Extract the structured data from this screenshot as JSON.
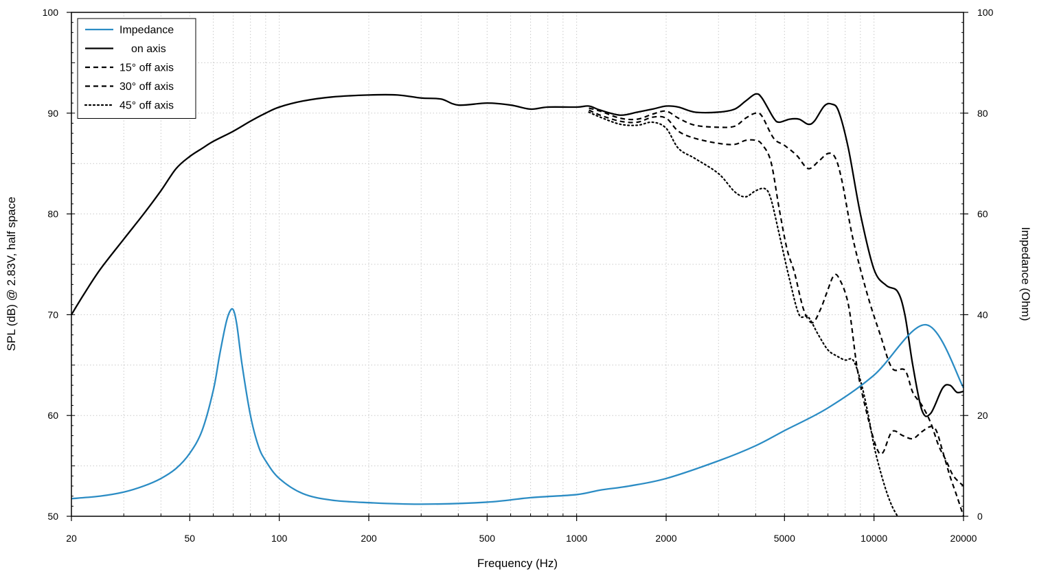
{
  "chart_data": {
    "type": "line",
    "title": "",
    "xlabel": "Frequency (Hz)",
    "ylabel": "SPL (dB) @ 2.83V, half space",
    "y2label": "Impedance (Ohm)",
    "x_scale": "log",
    "xlim": [
      20,
      20000
    ],
    "ylim": [
      50,
      100
    ],
    "y2lim": [
      0,
      100
    ],
    "grid": true,
    "legend_position": "top-left",
    "x_ticks": [
      20,
      50,
      100,
      200,
      500,
      1000,
      2000,
      5000,
      10000,
      20000
    ],
    "x_tick_labels": [
      "20",
      "50",
      "100",
      "200",
      "500",
      "1000",
      "2000",
      "5000",
      "10000",
      "20000"
    ],
    "y_ticks": [
      50,
      60,
      70,
      80,
      90,
      100
    ],
    "y_tick_labels": [
      "50",
      "60",
      "70",
      "80",
      "90",
      "100"
    ],
    "y2_ticks": [
      0,
      20,
      40,
      60,
      80,
      100
    ],
    "y2_tick_labels": [
      "0",
      "20",
      "40",
      "60",
      "80",
      "100"
    ],
    "series": [
      {
        "name": "Impedance",
        "axis": "right",
        "color": "#2b8cc4",
        "dash": "solid",
        "x": [
          20,
          25,
          30,
          35,
          40,
          45,
          50,
          55,
          60,
          63,
          66,
          68,
          70,
          72,
          75,
          80,
          85,
          90,
          100,
          120,
          150,
          200,
          300,
          500,
          700,
          1000,
          1200,
          1500,
          2000,
          3000,
          4000,
          5000,
          7000,
          10000,
          15000,
          20000
        ],
        "y": [
          3.5,
          4,
          4.8,
          6,
          7.5,
          9.5,
          12.5,
          17,
          25,
          32,
          38,
          40.5,
          41,
          38,
          30,
          20,
          14,
          11,
          7.5,
          4.5,
          3.2,
          2.7,
          2.4,
          2.8,
          3.7,
          4.3,
          5.2,
          6,
          7.5,
          11,
          14,
          17,
          21.5,
          28,
          38,
          25.5
        ]
      },
      {
        "name": "on axis",
        "axis": "left",
        "color": "#000000",
        "dash": "solid",
        "x": [
          20,
          22,
          25,
          30,
          35,
          40,
          45,
          50,
          55,
          60,
          70,
          80,
          90,
          100,
          120,
          150,
          200,
          250,
          300,
          350,
          400,
          500,
          600,
          700,
          800,
          1000,
          1100,
          1200,
          1400,
          1600,
          1800,
          2000,
          2200,
          2500,
          3000,
          3400,
          3700,
          4000,
          4200,
          4600,
          4800,
          5200,
          5600,
          6000,
          6300,
          6800,
          7200,
          7600,
          8200,
          9000,
          10000,
          11000,
          12000,
          12700,
          13500,
          14500,
          15500,
          17000,
          18000,
          19000,
          20000
        ],
        "y": [
          70,
          72,
          74.5,
          77.5,
          80,
          82.3,
          84.5,
          85.7,
          86.5,
          87.2,
          88.2,
          89.2,
          90,
          90.6,
          91.2,
          91.6,
          91.8,
          91.8,
          91.5,
          91.4,
          90.8,
          91,
          90.8,
          90.4,
          90.6,
          90.6,
          90.7,
          90.3,
          89.8,
          90.1,
          90.4,
          90.7,
          90.6,
          90.1,
          90.1,
          90.4,
          91.2,
          91.9,
          91.5,
          89.5,
          89.1,
          89.4,
          89.4,
          88.9,
          89.2,
          90.7,
          90.9,
          90.2,
          86.5,
          80,
          74.5,
          72.9,
          72.3,
          70,
          65,
          60.5,
          60.2,
          62.7,
          63,
          62.3,
          62.4
        ]
      },
      {
        "name": "15° off axis",
        "axis": "left",
        "color": "#000000",
        "dash": "dashed",
        "x": [
          1100,
          1200,
          1400,
          1600,
          1800,
          2000,
          2200,
          2500,
          3000,
          3400,
          3700,
          4000,
          4200,
          4600,
          5000,
          5500,
          6000,
          6500,
          7000,
          7400,
          7800,
          8500,
          9500,
          10500,
          11500,
          12700,
          13500,
          14500,
          15500,
          16500,
          17500,
          18500,
          20000
        ],
        "y": [
          90.5,
          90.2,
          89.5,
          89.4,
          89.9,
          90.2,
          89.5,
          88.8,
          88.6,
          88.7,
          89.5,
          90,
          89.7,
          87.5,
          86.8,
          85.8,
          84.5,
          85.2,
          86,
          85.6,
          83.3,
          77.5,
          72,
          68,
          64.7,
          64.5,
          62.3,
          61,
          59.3,
          57,
          55.5,
          54,
          53
        ]
      },
      {
        "name": "30° off axis",
        "axis": "left",
        "color": "#000000",
        "dash": "dashed",
        "x": [
          1100,
          1200,
          1400,
          1600,
          1800,
          2000,
          2200,
          2500,
          3000,
          3400,
          3700,
          4000,
          4200,
          4500,
          4800,
          5100,
          5400,
          5800,
          6200,
          6600,
          7000,
          7300,
          7600,
          8200,
          8800,
          9500,
          10200,
          10700,
          11500,
          12500,
          13500,
          14500,
          15500,
          16200,
          17000,
          18000,
          19000,
          20000
        ],
        "y": [
          90.3,
          89.8,
          89.2,
          89.1,
          89.6,
          89.5,
          88.2,
          87.5,
          87,
          86.9,
          87.3,
          87.3,
          86.9,
          85.2,
          80.5,
          76.5,
          74.2,
          70.5,
          69.2,
          70.5,
          72.5,
          73.8,
          73.7,
          71,
          64.5,
          60,
          56.8,
          56.3,
          58.4,
          58,
          57.7,
          58.4,
          58.9,
          58.5,
          56.5,
          54,
          52,
          50
        ]
      },
      {
        "name": "45° off axis",
        "axis": "left",
        "color": "#000000",
        "dash": "dotted",
        "x": [
          1100,
          1200,
          1400,
          1600,
          1800,
          2000,
          2200,
          2500,
          3000,
          3400,
          3700,
          4000,
          4300,
          4500,
          4800,
          5200,
          5600,
          6000,
          6500,
          7000,
          7500,
          8000,
          8500,
          9000,
          9500,
          10000,
          10500,
          11000,
          11500,
          12000
        ],
        "y": [
          90.1,
          89.6,
          88.9,
          88.8,
          89.1,
          88.5,
          86.5,
          85.5,
          84,
          82.2,
          81.7,
          82.3,
          82.5,
          81.5,
          78,
          73.5,
          70,
          69.8,
          68,
          66.5,
          65.9,
          65.5,
          65.5,
          63.5,
          60.5,
          57,
          54.5,
          52.5,
          51,
          50
        ]
      }
    ]
  }
}
